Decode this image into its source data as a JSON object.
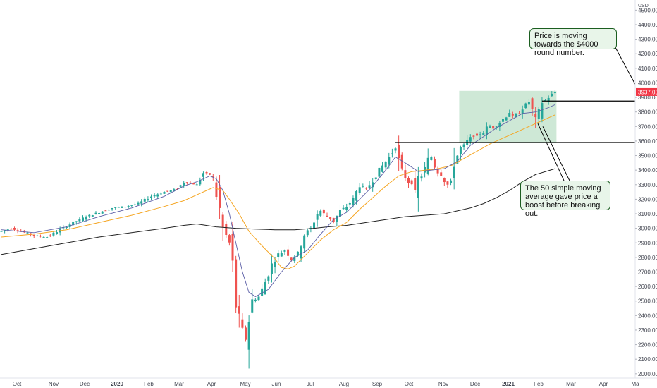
{
  "chart_data": {
    "type": "candlestick",
    "currency": "USD",
    "y_ticks": [
      2000,
      2100,
      2200,
      2300,
      2400,
      2500,
      2600,
      2700,
      2800,
      2900,
      3000,
      3100,
      3200,
      3300,
      3400,
      3500,
      3600,
      3700,
      3800,
      3900,
      4000,
      4100,
      4200,
      4300,
      4400,
      4500
    ],
    "y_tick_labels": [
      "2000.00",
      "2100.00",
      "2200.00",
      "2300.00",
      "2400.00",
      "2500.00",
      "2600.00",
      "2700.00",
      "2800.00",
      "2900.00",
      "3000.00",
      "3100.00",
      "3200.00",
      "3300.00",
      "3400.00",
      "3500.00",
      "3600.00",
      "3700.00",
      "3800.00",
      "3900.00",
      "4000.00",
      "4100.00",
      "4200.00",
      "4300.00",
      "4400.00",
      "4500.00"
    ],
    "ylim": [
      1970,
      4560
    ],
    "x_ticks": [
      {
        "label": "Oct",
        "bold": false
      },
      {
        "label": "Nov",
        "bold": false
      },
      {
        "label": "Dec",
        "bold": false
      },
      {
        "label": "2020",
        "bold": true
      },
      {
        "label": "Feb",
        "bold": false
      },
      {
        "label": "Mar",
        "bold": false
      },
      {
        "label": "Apr",
        "bold": false
      },
      {
        "label": "May",
        "bold": false
      },
      {
        "label": "Jun",
        "bold": false
      },
      {
        "label": "Jul",
        "bold": false
      },
      {
        "label": "Aug",
        "bold": false
      },
      {
        "label": "Sep",
        "bold": false
      },
      {
        "label": "Oct",
        "bold": false
      },
      {
        "label": "Nov",
        "bold": false
      },
      {
        "label": "Dec",
        "bold": false
      },
      {
        "label": "2021",
        "bold": true
      },
      {
        "label": "Feb",
        "bold": false
      },
      {
        "label": "Mar",
        "bold": false
      },
      {
        "label": "Apr",
        "bold": false
      },
      {
        "label": "Ma",
        "bold": false
      }
    ],
    "last_price": "3937.03",
    "last_price_value": 3937.03,
    "close_path": [
      [
        0,
        2980
      ],
      [
        3,
        3000
      ],
      [
        6,
        2980
      ],
      [
        10,
        2950
      ],
      [
        14,
        2940
      ],
      [
        18,
        2990
      ],
      [
        22,
        3040
      ],
      [
        26,
        3080
      ],
      [
        30,
        3110
      ],
      [
        34,
        3140
      ],
      [
        38,
        3150
      ],
      [
        42,
        3170
      ],
      [
        46,
        3220
      ],
      [
        50,
        3250
      ],
      [
        54,
        3270
      ],
      [
        56,
        3320
      ],
      [
        60,
        3300
      ],
      [
        62,
        3380
      ],
      [
        64,
        3370
      ],
      [
        65,
        3350
      ],
      [
        66,
        3230
      ],
      [
        67,
        3130
      ],
      [
        68,
        3000
      ],
      [
        69,
        2950
      ],
      [
        70,
        2900
      ],
      [
        71,
        2750
      ],
      [
        72,
        2480
      ],
      [
        73,
        2380
      ],
      [
        74,
        2290
      ],
      [
        75,
        2240
      ],
      [
        77,
        2500
      ],
      [
        79,
        2530
      ],
      [
        81,
        2630
      ],
      [
        83,
        2750
      ],
      [
        85,
        2820
      ],
      [
        87,
        2850
      ],
      [
        89,
        2790
      ],
      [
        91,
        2830
      ],
      [
        93,
        2960
      ],
      [
        95,
        3000
      ],
      [
        97,
        3100
      ],
      [
        98,
        3120
      ],
      [
        100,
        3080
      ],
      [
        102,
        3050
      ],
      [
        104,
        3120
      ],
      [
        106,
        3150
      ],
      [
        108,
        3200
      ],
      [
        110,
        3300
      ],
      [
        112,
        3270
      ],
      [
        114,
        3330
      ],
      [
        116,
        3400
      ],
      [
        118,
        3460
      ],
      [
        120,
        3520
      ],
      [
        121,
        3570
      ],
      [
        122,
        3460
      ],
      [
        123,
        3390
      ],
      [
        124,
        3350
      ],
      [
        125,
        3320
      ],
      [
        126,
        3310
      ],
      [
        127,
        3230
      ],
      [
        128,
        3340
      ],
      [
        129,
        3360
      ],
      [
        130,
        3410
      ],
      [
        131,
        3470
      ],
      [
        132,
        3490
      ],
      [
        133,
        3430
      ],
      [
        134,
        3390
      ],
      [
        135,
        3370
      ],
      [
        136,
        3330
      ],
      [
        137,
        3300
      ],
      [
        138,
        3320
      ],
      [
        139,
        3460
      ],
      [
        140,
        3500
      ],
      [
        141,
        3550
      ],
      [
        142,
        3570
      ],
      [
        143,
        3600
      ],
      [
        144,
        3620
      ],
      [
        145,
        3640
      ],
      [
        146,
        3630
      ],
      [
        147,
        3650
      ],
      [
        148,
        3660
      ],
      [
        149,
        3690
      ],
      [
        150,
        3700
      ],
      [
        151,
        3690
      ],
      [
        152,
        3710
      ],
      [
        153,
        3730
      ],
      [
        154,
        3750
      ],
      [
        155,
        3770
      ],
      [
        156,
        3800
      ],
      [
        157,
        3760
      ],
      [
        158,
        3780
      ],
      [
        159,
        3790
      ],
      [
        160,
        3830
      ],
      [
        161,
        3850
      ],
      [
        162,
        3870
      ],
      [
        163,
        3810
      ],
      [
        164,
        3740
      ],
      [
        165,
        3800
      ],
      [
        166,
        3870
      ],
      [
        167,
        3880
      ],
      [
        168,
        3900
      ],
      [
        169,
        3920
      ],
      [
        170,
        3934
      ]
    ],
    "sma20_path": [
      [
        0,
        2990
      ],
      [
        10,
        2970
      ],
      [
        20,
        3010
      ],
      [
        30,
        3080
      ],
      [
        40,
        3140
      ],
      [
        50,
        3220
      ],
      [
        56,
        3290
      ],
      [
        60,
        3320
      ],
      [
        64,
        3360
      ],
      [
        66,
        3340
      ],
      [
        68,
        3260
      ],
      [
        70,
        3100
      ],
      [
        72,
        2900
      ],
      [
        74,
        2700
      ],
      [
        76,
        2560
      ],
      [
        78,
        2530
      ],
      [
        82,
        2580
      ],
      [
        86,
        2700
      ],
      [
        90,
        2800
      ],
      [
        94,
        2850
      ],
      [
        98,
        2960
      ],
      [
        102,
        3060
      ],
      [
        106,
        3110
      ],
      [
        110,
        3200
      ],
      [
        114,
        3290
      ],
      [
        118,
        3400
      ],
      [
        121,
        3490
      ],
      [
        124,
        3450
      ],
      [
        128,
        3390
      ],
      [
        132,
        3400
      ],
      [
        136,
        3410
      ],
      [
        140,
        3460
      ],
      [
        144,
        3570
      ],
      [
        148,
        3630
      ],
      [
        152,
        3690
      ],
      [
        156,
        3740
      ],
      [
        160,
        3790
      ],
      [
        164,
        3800
      ],
      [
        168,
        3830
      ],
      [
        170,
        3850
      ]
    ],
    "sma50_path": [
      [
        0,
        2940
      ],
      [
        10,
        2960
      ],
      [
        20,
        2990
      ],
      [
        30,
        3040
      ],
      [
        40,
        3090
      ],
      [
        50,
        3150
      ],
      [
        56,
        3190
      ],
      [
        60,
        3230
      ],
      [
        63,
        3260
      ],
      [
        65,
        3280
      ],
      [
        68,
        3260
      ],
      [
        70,
        3200
      ],
      [
        73,
        3100
      ],
      [
        76,
        2980
      ],
      [
        80,
        2880
      ],
      [
        84,
        2790
      ],
      [
        86,
        2730
      ],
      [
        88,
        2720
      ],
      [
        90,
        2740
      ],
      [
        94,
        2830
      ],
      [
        98,
        2920
      ],
      [
        102,
        2990
      ],
      [
        106,
        3040
      ],
      [
        110,
        3130
      ],
      [
        114,
        3210
      ],
      [
        118,
        3290
      ],
      [
        122,
        3360
      ],
      [
        126,
        3390
      ],
      [
        130,
        3400
      ],
      [
        134,
        3410
      ],
      [
        138,
        3430
      ],
      [
        142,
        3480
      ],
      [
        146,
        3530
      ],
      [
        150,
        3580
      ],
      [
        154,
        3620
      ],
      [
        158,
        3660
      ],
      [
        162,
        3700
      ],
      [
        166,
        3740
      ],
      [
        170,
        3780
      ]
    ],
    "sma200_path": [
      [
        0,
        2820
      ],
      [
        10,
        2860
      ],
      [
        20,
        2900
      ],
      [
        30,
        2940
      ],
      [
        40,
        2970
      ],
      [
        50,
        3000
      ],
      [
        56,
        3020
      ],
      [
        60,
        3030
      ],
      [
        66,
        3010
      ],
      [
        72,
        3000
      ],
      [
        78,
        2995
      ],
      [
        84,
        2990
      ],
      [
        90,
        2990
      ],
      [
        96,
        3000
      ],
      [
        100,
        3010
      ],
      [
        106,
        3020
      ],
      [
        112,
        3040
      ],
      [
        118,
        3060
      ],
      [
        124,
        3080
      ],
      [
        130,
        3090
      ],
      [
        136,
        3100
      ],
      [
        140,
        3120
      ],
      [
        144,
        3140
      ],
      [
        148,
        3170
      ],
      [
        152,
        3210
      ],
      [
        156,
        3260
      ],
      [
        160,
        3320
      ],
      [
        164,
        3370
      ],
      [
        170,
        3410
      ]
    ],
    "resistance_levels": [
      {
        "value": 3590,
        "from": 121,
        "to": 200
      },
      {
        "value": 3875,
        "from": 166,
        "to": 200
      }
    ],
    "box_zone": {
      "from": 141,
      "to": 170,
      "low": 3590,
      "high": 3945
    },
    "annotations": [
      "Price is moving towards the $4000 round number.",
      "The 50 simple moving average gave price a boost before breaking out."
    ],
    "colors": {
      "up": "#26a69a",
      "down": "#ef5350",
      "sma20": "#5b5ea6",
      "sma50": "#f5a623",
      "sma200": "#222222",
      "zone": "#a5d6b4",
      "price_tag": "#f23645"
    }
  }
}
